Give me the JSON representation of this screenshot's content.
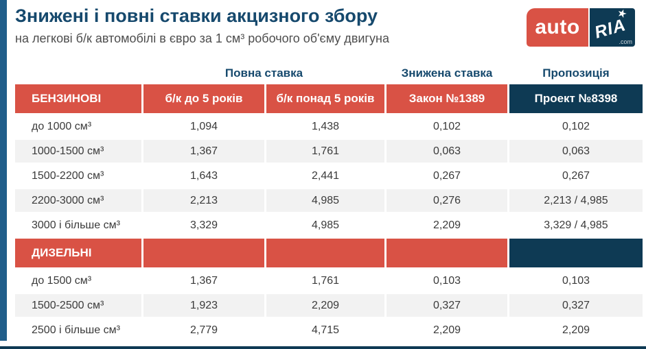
{
  "header": {
    "title": "Знижені і повні ставки акцизного збору",
    "subtitle": "на легкові б/к автомобілі в євро за 1 см³ робочого об'єму двигуна",
    "logo": {
      "auto": "auto",
      "ria": "RIA",
      "com": ".com"
    }
  },
  "chart_data": {
    "type": "table",
    "title": "Знижені і повні ставки акцизного збору",
    "subtitle": "на легкові б/к автомобілі в євро за 1 см³ робочого об'єму двигуна",
    "group_headers": {
      "full": "Повна ставка",
      "reduced": "Знижена ставка",
      "proposal": "Пропозиція"
    },
    "benzin": {
      "name": "БЕНЗИНОВІ",
      "col1": "б/к до 5 років",
      "col2": "б/к понад 5 років",
      "col3": "Закон №1389",
      "col4": "Проект №8398",
      "rows": [
        {
          "label": "до 1000 см³",
          "v": [
            "1,094",
            "1,438",
            "0,102",
            "0,102"
          ]
        },
        {
          "label": "1000-1500 см³",
          "v": [
            "1,367",
            "1,761",
            "0,063",
            "0,063"
          ]
        },
        {
          "label": "1500-2200 см³",
          "v": [
            "1,643",
            "2,441",
            "0,267",
            "0,267"
          ]
        },
        {
          "label": "2200-3000 см³",
          "v": [
            "2,213",
            "4,985",
            "0,276",
            "2,213 / 4,985"
          ]
        },
        {
          "label": "3000 і більше см³",
          "v": [
            "3,329",
            "4,985",
            "2,209",
            "3,329 / 4,985"
          ]
        }
      ]
    },
    "diesel": {
      "name": "ДИЗЕЛЬНІ",
      "rows": [
        {
          "label": "до 1500 см³",
          "v": [
            "1,367",
            "1,761",
            "0,103",
            "0,103"
          ]
        },
        {
          "label": "1500-2500 см³",
          "v": [
            "1,923",
            "2,209",
            "0,327",
            "0,327"
          ]
        },
        {
          "label": "2500 і більше см³",
          "v": [
            "2,779",
            "4,715",
            "2,209",
            "2,209"
          ]
        }
      ]
    }
  },
  "colors": {
    "accent_red": "#d95245",
    "navy": "#0e3a54",
    "title_blue": "#16496d",
    "left_bar_blue": "#215e8a",
    "row_gray": "#f2f2f2",
    "text_gray": "#3a3a3a"
  }
}
